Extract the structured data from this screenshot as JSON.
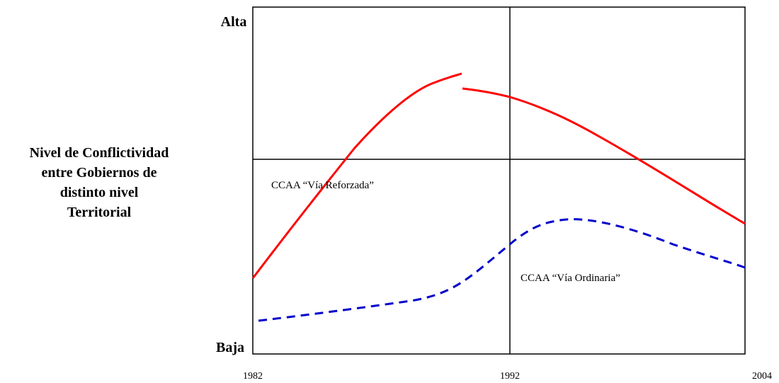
{
  "y_axis": {
    "label_lines": [
      "Nivel de Conflictividad",
      "entre Gobiernos de",
      "distinto nivel",
      "Territorial"
    ],
    "top": "Alta",
    "bottom": "Baja"
  },
  "x_axis": {
    "labels": [
      "1982",
      "1992",
      "2004"
    ]
  },
  "annotations": [
    "CCAA “Vía Reforzada”",
    "CCAA “Vía Ordinaria”"
  ]
}
